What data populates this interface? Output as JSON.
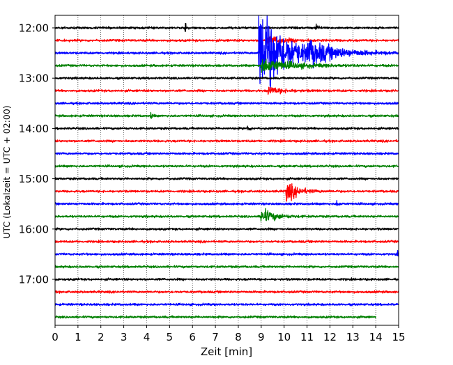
{
  "chart_data": {
    "type": "line",
    "title": "",
    "xlabel": "Zeit  [min]",
    "ylabel": "UTC (Lokalzeit = UTC + 02:00)",
    "xlim": [
      0,
      15
    ],
    "x_ticks": [
      "0",
      "1",
      "2",
      "3",
      "4",
      "5",
      "6",
      "7",
      "8",
      "9",
      "10",
      "11",
      "12",
      "13",
      "14",
      "15"
    ],
    "y_tick_labels": [
      "12:00",
      "13:00",
      "14:00",
      "15:00",
      "16:00",
      "17:00"
    ],
    "row_interval_min": 15,
    "rows_per_tick": 4,
    "grid": "vertical dotted",
    "legend": "none",
    "trace_colors": [
      "#000000",
      "#ff0000",
      "#0000ff",
      "#008000"
    ],
    "rows": [
      {
        "time": "12:00",
        "color": "#000000",
        "events": [
          {
            "t": 5.7,
            "amp": 0.5,
            "dur": 0.1
          },
          {
            "t": 11.4,
            "amp": 0.4,
            "dur": 0.2
          }
        ]
      },
      {
        "time": "12:15",
        "color": "#ff0000",
        "events": [
          {
            "t": 9.2,
            "amp": 0.5,
            "dur": 1.5
          }
        ]
      },
      {
        "time": "12:30",
        "color": "#0000ff",
        "events": [
          {
            "t": 8.9,
            "amp": 6.0,
            "dur": 2.0
          },
          {
            "t": 11.0,
            "amp": 0.9,
            "dur": 2.5
          }
        ]
      },
      {
        "time": "12:45",
        "color": "#008000",
        "events": [
          {
            "t": 9.0,
            "amp": 0.8,
            "dur": 2.5
          }
        ]
      },
      {
        "time": "13:00",
        "color": "#000000",
        "events": []
      },
      {
        "time": "13:15",
        "color": "#ff0000",
        "events": [
          {
            "t": 9.3,
            "amp": 0.4,
            "dur": 1.2
          }
        ]
      },
      {
        "time": "13:30",
        "color": "#0000ff",
        "events": []
      },
      {
        "time": "13:45",
        "color": "#008000",
        "events": [
          {
            "t": 4.2,
            "amp": 0.4,
            "dur": 0.1
          }
        ]
      },
      {
        "time": "14:00",
        "color": "#000000",
        "events": [
          {
            "t": 8.4,
            "amp": 0.3,
            "dur": 0.2
          }
        ]
      },
      {
        "time": "14:15",
        "color": "#ff0000",
        "events": []
      },
      {
        "time": "14:30",
        "color": "#0000ff",
        "events": []
      },
      {
        "time": "14:45",
        "color": "#008000",
        "events": []
      },
      {
        "time": "15:00",
        "color": "#000000",
        "events": []
      },
      {
        "time": "15:15",
        "color": "#ff0000",
        "events": [
          {
            "t": 10.1,
            "amp": 1.1,
            "dur": 0.9
          }
        ]
      },
      {
        "time": "15:30",
        "color": "#0000ff",
        "events": [
          {
            "t": 12.3,
            "amp": 0.3,
            "dur": 0.2
          }
        ]
      },
      {
        "time": "15:45",
        "color": "#008000",
        "events": [
          {
            "t": 9.0,
            "amp": 0.9,
            "dur": 1.0
          }
        ]
      },
      {
        "time": "16:00",
        "color": "#000000",
        "events": []
      },
      {
        "time": "16:15",
        "color": "#ff0000",
        "events": []
      },
      {
        "time": "16:30",
        "color": "#0000ff",
        "events": [
          {
            "t": 14.95,
            "amp": 0.5,
            "dur": 0.05
          }
        ]
      },
      {
        "time": "16:45",
        "color": "#008000",
        "events": []
      },
      {
        "time": "17:00",
        "color": "#000000",
        "events": []
      },
      {
        "time": "17:15",
        "color": "#ff0000",
        "events": []
      },
      {
        "time": "17:30",
        "color": "#0000ff",
        "events": []
      },
      {
        "time": "17:45",
        "color": "#008000",
        "end": 14.0,
        "events": []
      }
    ]
  }
}
